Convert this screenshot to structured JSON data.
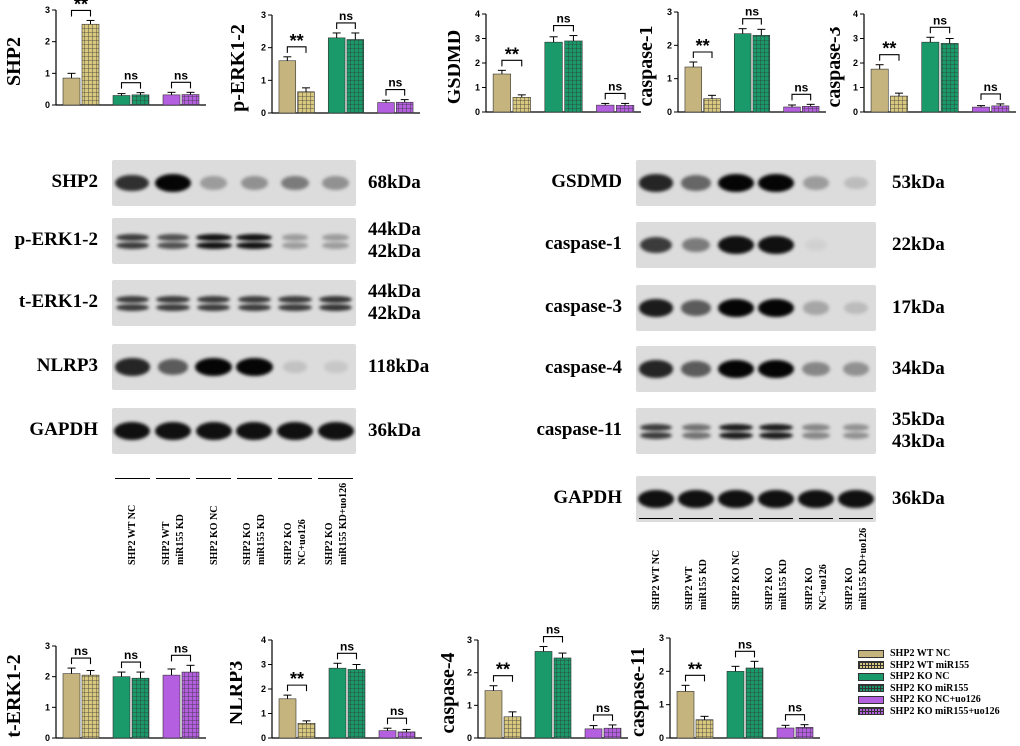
{
  "colors": {
    "wt_nc": "#c5b47e",
    "wt_mir": "#d9c87f",
    "ko_nc": "#1a9a6a",
    "ko_mir": "#1a9a6a",
    "ko_nc_uo": "#b45ee0",
    "ko_mir_uo": "#b45ee0"
  },
  "legend": {
    "items": [
      {
        "label": "SHP2 WT NC",
        "color": "#c5b47e",
        "pattern": "solid"
      },
      {
        "label": "SHP2 WT miR155",
        "color": "#d9c87f",
        "pattern": "grid"
      },
      {
        "label": "SHP2 KO NC",
        "color": "#1a9a6a",
        "pattern": "solid"
      },
      {
        "label": "SHP2 KO miR155",
        "color": "#1a9a6a",
        "pattern": "grid"
      },
      {
        "label": "SHP2 KO NC+uo126",
        "color": "#b45ee0",
        "pattern": "solid"
      },
      {
        "label": "SHP2 KO miR155+uo126",
        "color": "#b45ee0",
        "pattern": "grid"
      }
    ]
  },
  "chart_data": [
    {
      "id": "shp2",
      "type": "bar",
      "ylabel": "SHP2",
      "yticks": [
        "0",
        "1",
        "2",
        "3"
      ],
      "ylim": [
        0,
        3
      ],
      "values": [
        0.85,
        2.55,
        0.3,
        0.32,
        0.32,
        0.33
      ],
      "errors": [
        0.15,
        0.12,
        0.06,
        0.07,
        0.08,
        0.07
      ],
      "annotations": [
        {
          "pair": [
            0,
            1
          ],
          "text": "**"
        },
        {
          "pair": [
            2,
            3
          ],
          "text": "ns"
        },
        {
          "pair": [
            4,
            5
          ],
          "text": "ns"
        }
      ]
    },
    {
      "id": "perk",
      "type": "bar",
      "ylabel": "p-ERK1-2",
      "yticks": [
        "0",
        "1",
        "2",
        "3"
      ],
      "ylim": [
        0,
        3
      ],
      "values": [
        1.6,
        0.65,
        2.3,
        2.25,
        0.32,
        0.33
      ],
      "errors": [
        0.12,
        0.12,
        0.15,
        0.2,
        0.07,
        0.08
      ],
      "annotations": [
        {
          "pair": [
            0,
            1
          ],
          "text": "**"
        },
        {
          "pair": [
            2,
            3
          ],
          "text": "ns"
        },
        {
          "pair": [
            4,
            5
          ],
          "text": "ns"
        }
      ]
    },
    {
      "id": "gsdmd",
      "type": "bar",
      "ylabel": "GSDMD",
      "yticks": [
        "0",
        "1",
        "2",
        "3",
        "4"
      ],
      "ylim": [
        0,
        4
      ],
      "values": [
        1.55,
        0.6,
        2.85,
        2.9,
        0.28,
        0.27
      ],
      "errors": [
        0.15,
        0.1,
        0.22,
        0.22,
        0.07,
        0.08
      ],
      "annotations": [
        {
          "pair": [
            0,
            1
          ],
          "text": "**"
        },
        {
          "pair": [
            2,
            3
          ],
          "text": "ns"
        },
        {
          "pair": [
            4,
            5
          ],
          "text": "ns"
        }
      ]
    },
    {
      "id": "casp1",
      "type": "bar",
      "ylabel": "caspase-1",
      "yticks": [
        "0",
        "1",
        "2",
        "3"
      ],
      "ylim": [
        0,
        3
      ],
      "values": [
        1.35,
        0.4,
        2.35,
        2.3,
        0.15,
        0.17
      ],
      "errors": [
        0.15,
        0.1,
        0.15,
        0.18,
        0.06,
        0.06
      ],
      "annotations": [
        {
          "pair": [
            0,
            1
          ],
          "text": "**"
        },
        {
          "pair": [
            2,
            3
          ],
          "text": "ns"
        },
        {
          "pair": [
            4,
            5
          ],
          "text": "ns"
        }
      ]
    },
    {
      "id": "casp3",
      "type": "bar",
      "ylabel": "caspase-3",
      "yticks": [
        "0",
        "1",
        "2",
        "3",
        "4"
      ],
      "ylim": [
        0,
        4
      ],
      "values": [
        1.75,
        0.65,
        2.85,
        2.8,
        0.2,
        0.25
      ],
      "errors": [
        0.18,
        0.12,
        0.2,
        0.2,
        0.06,
        0.08
      ],
      "annotations": [
        {
          "pair": [
            0,
            1
          ],
          "text": "**"
        },
        {
          "pair": [
            2,
            3
          ],
          "text": "ns"
        },
        {
          "pair": [
            4,
            5
          ],
          "text": "ns"
        }
      ]
    },
    {
      "id": "terk",
      "type": "bar",
      "ylabel": "t-ERK1-2",
      "yticks": [
        "0",
        "1",
        "2",
        "3"
      ],
      "ylim": [
        0,
        3
      ],
      "values": [
        2.1,
        2.05,
        2.0,
        1.95,
        2.05,
        2.15
      ],
      "errors": [
        0.18,
        0.15,
        0.15,
        0.2,
        0.2,
        0.22
      ],
      "annotations": [
        {
          "pair": [
            0,
            1
          ],
          "text": "ns"
        },
        {
          "pair": [
            2,
            3
          ],
          "text": "ns"
        },
        {
          "pair": [
            4,
            5
          ],
          "text": "ns"
        }
      ]
    },
    {
      "id": "nlrp3",
      "type": "bar",
      "ylabel": "NLRP3",
      "yticks": [
        "0",
        "1",
        "2",
        "3",
        "4"
      ],
      "ylim": [
        0,
        4
      ],
      "values": [
        1.6,
        0.6,
        2.85,
        2.8,
        0.3,
        0.25
      ],
      "errors": [
        0.15,
        0.1,
        0.2,
        0.2,
        0.1,
        0.1
      ],
      "annotations": [
        {
          "pair": [
            0,
            1
          ],
          "text": "**"
        },
        {
          "pair": [
            2,
            3
          ],
          "text": "ns"
        },
        {
          "pair": [
            4,
            5
          ],
          "text": "ns"
        }
      ]
    },
    {
      "id": "casp4",
      "type": "bar",
      "ylabel": "caspase-4",
      "yticks": [
        "0",
        "1",
        "2",
        "3"
      ],
      "ylim": [
        0,
        3
      ],
      "values": [
        1.45,
        0.65,
        2.65,
        2.45,
        0.28,
        0.3
      ],
      "errors": [
        0.15,
        0.15,
        0.15,
        0.15,
        0.1,
        0.1
      ],
      "annotations": [
        {
          "pair": [
            0,
            1
          ],
          "text": "**"
        },
        {
          "pair": [
            2,
            3
          ],
          "text": "ns"
        },
        {
          "pair": [
            4,
            5
          ],
          "text": "ns"
        }
      ]
    },
    {
      "id": "casp11",
      "type": "bar",
      "ylabel": "caspase-11",
      "yticks": [
        "0",
        "1",
        "2",
        "3"
      ],
      "ylim": [
        0,
        3
      ],
      "values": [
        1.4,
        0.55,
        2.0,
        2.1,
        0.3,
        0.32
      ],
      "errors": [
        0.18,
        0.1,
        0.15,
        0.2,
        0.08,
        0.08
      ],
      "annotations": [
        {
          "pair": [
            0,
            1
          ],
          "text": "**"
        },
        {
          "pair": [
            2,
            3
          ],
          "text": "ns"
        },
        {
          "pair": [
            4,
            5
          ],
          "text": "ns"
        }
      ]
    }
  ],
  "blots": {
    "left": {
      "rows": [
        {
          "label": "SHP2",
          "kda": [
            "68kDa"
          ],
          "intensity": [
            0.8,
            1.0,
            0.3,
            0.35,
            0.45,
            0.35
          ]
        },
        {
          "label": "p-ERK1-2",
          "kda": [
            "44kDa",
            "42kDa"
          ],
          "intensity": [
            0.75,
            0.65,
            0.95,
            0.95,
            0.3,
            0.3
          ]
        },
        {
          "label": "t-ERK1-2",
          "kda": [
            "44kDa",
            "42kDa"
          ],
          "intensity": [
            0.75,
            0.75,
            0.75,
            0.75,
            0.75,
            0.78
          ]
        },
        {
          "label": "NLRP3",
          "kda": [
            "118kDa"
          ],
          "intensity": [
            0.85,
            0.6,
            1.0,
            1.0,
            0.12,
            0.1
          ]
        },
        {
          "label": "GAPDH",
          "kda": [
            "36kDa"
          ],
          "intensity": [
            0.95,
            0.95,
            0.95,
            0.95,
            0.95,
            0.95
          ]
        }
      ],
      "lanes": [
        "SHP2 WT NC",
        "SHP2 WT",
        "miR155 KD",
        "SHP2 KO NC",
        "SHP2 KO",
        "miR155 KD",
        "SHP2 KO",
        "NC+uo126",
        "SHP2 KO",
        "miR155 KD+uo126"
      ]
    },
    "right": {
      "rows": [
        {
          "label": "GSDMD",
          "kda": [
            "53kDa"
          ],
          "intensity": [
            0.85,
            0.55,
            1.0,
            1.0,
            0.3,
            0.15
          ]
        },
        {
          "label": "caspase-1",
          "kda": [
            "22kDa"
          ],
          "intensity": [
            0.75,
            0.45,
            0.95,
            0.95,
            0.05,
            0.0
          ]
        },
        {
          "label": "caspase-3",
          "kda": [
            "17kDa"
          ],
          "intensity": [
            0.9,
            0.6,
            1.0,
            1.0,
            0.25,
            0.15
          ]
        },
        {
          "label": "caspase-4",
          "kda": [
            "34kDa"
          ],
          "intensity": [
            0.85,
            0.6,
            1.0,
            1.0,
            0.4,
            0.35
          ]
        },
        {
          "label": "caspase-11",
          "kda": [
            "35kDa",
            "43kDa"
          ],
          "intensity": [
            0.75,
            0.5,
            0.9,
            0.9,
            0.4,
            0.35
          ]
        },
        {
          "label": "GAPDH",
          "kda": [
            "36kDa"
          ],
          "intensity": [
            0.95,
            0.95,
            0.95,
            0.95,
            0.95,
            0.95
          ]
        }
      ],
      "lanes": [
        "SHP2 WT NC",
        "SHP2 WT",
        "miR155 KD",
        "SHP2 KO NC",
        "SHP2 KO",
        "miR155 KD",
        "SHP2 KO",
        "NC+uo126",
        "SHP2 KO",
        "miR155 KD+uo126"
      ]
    }
  }
}
